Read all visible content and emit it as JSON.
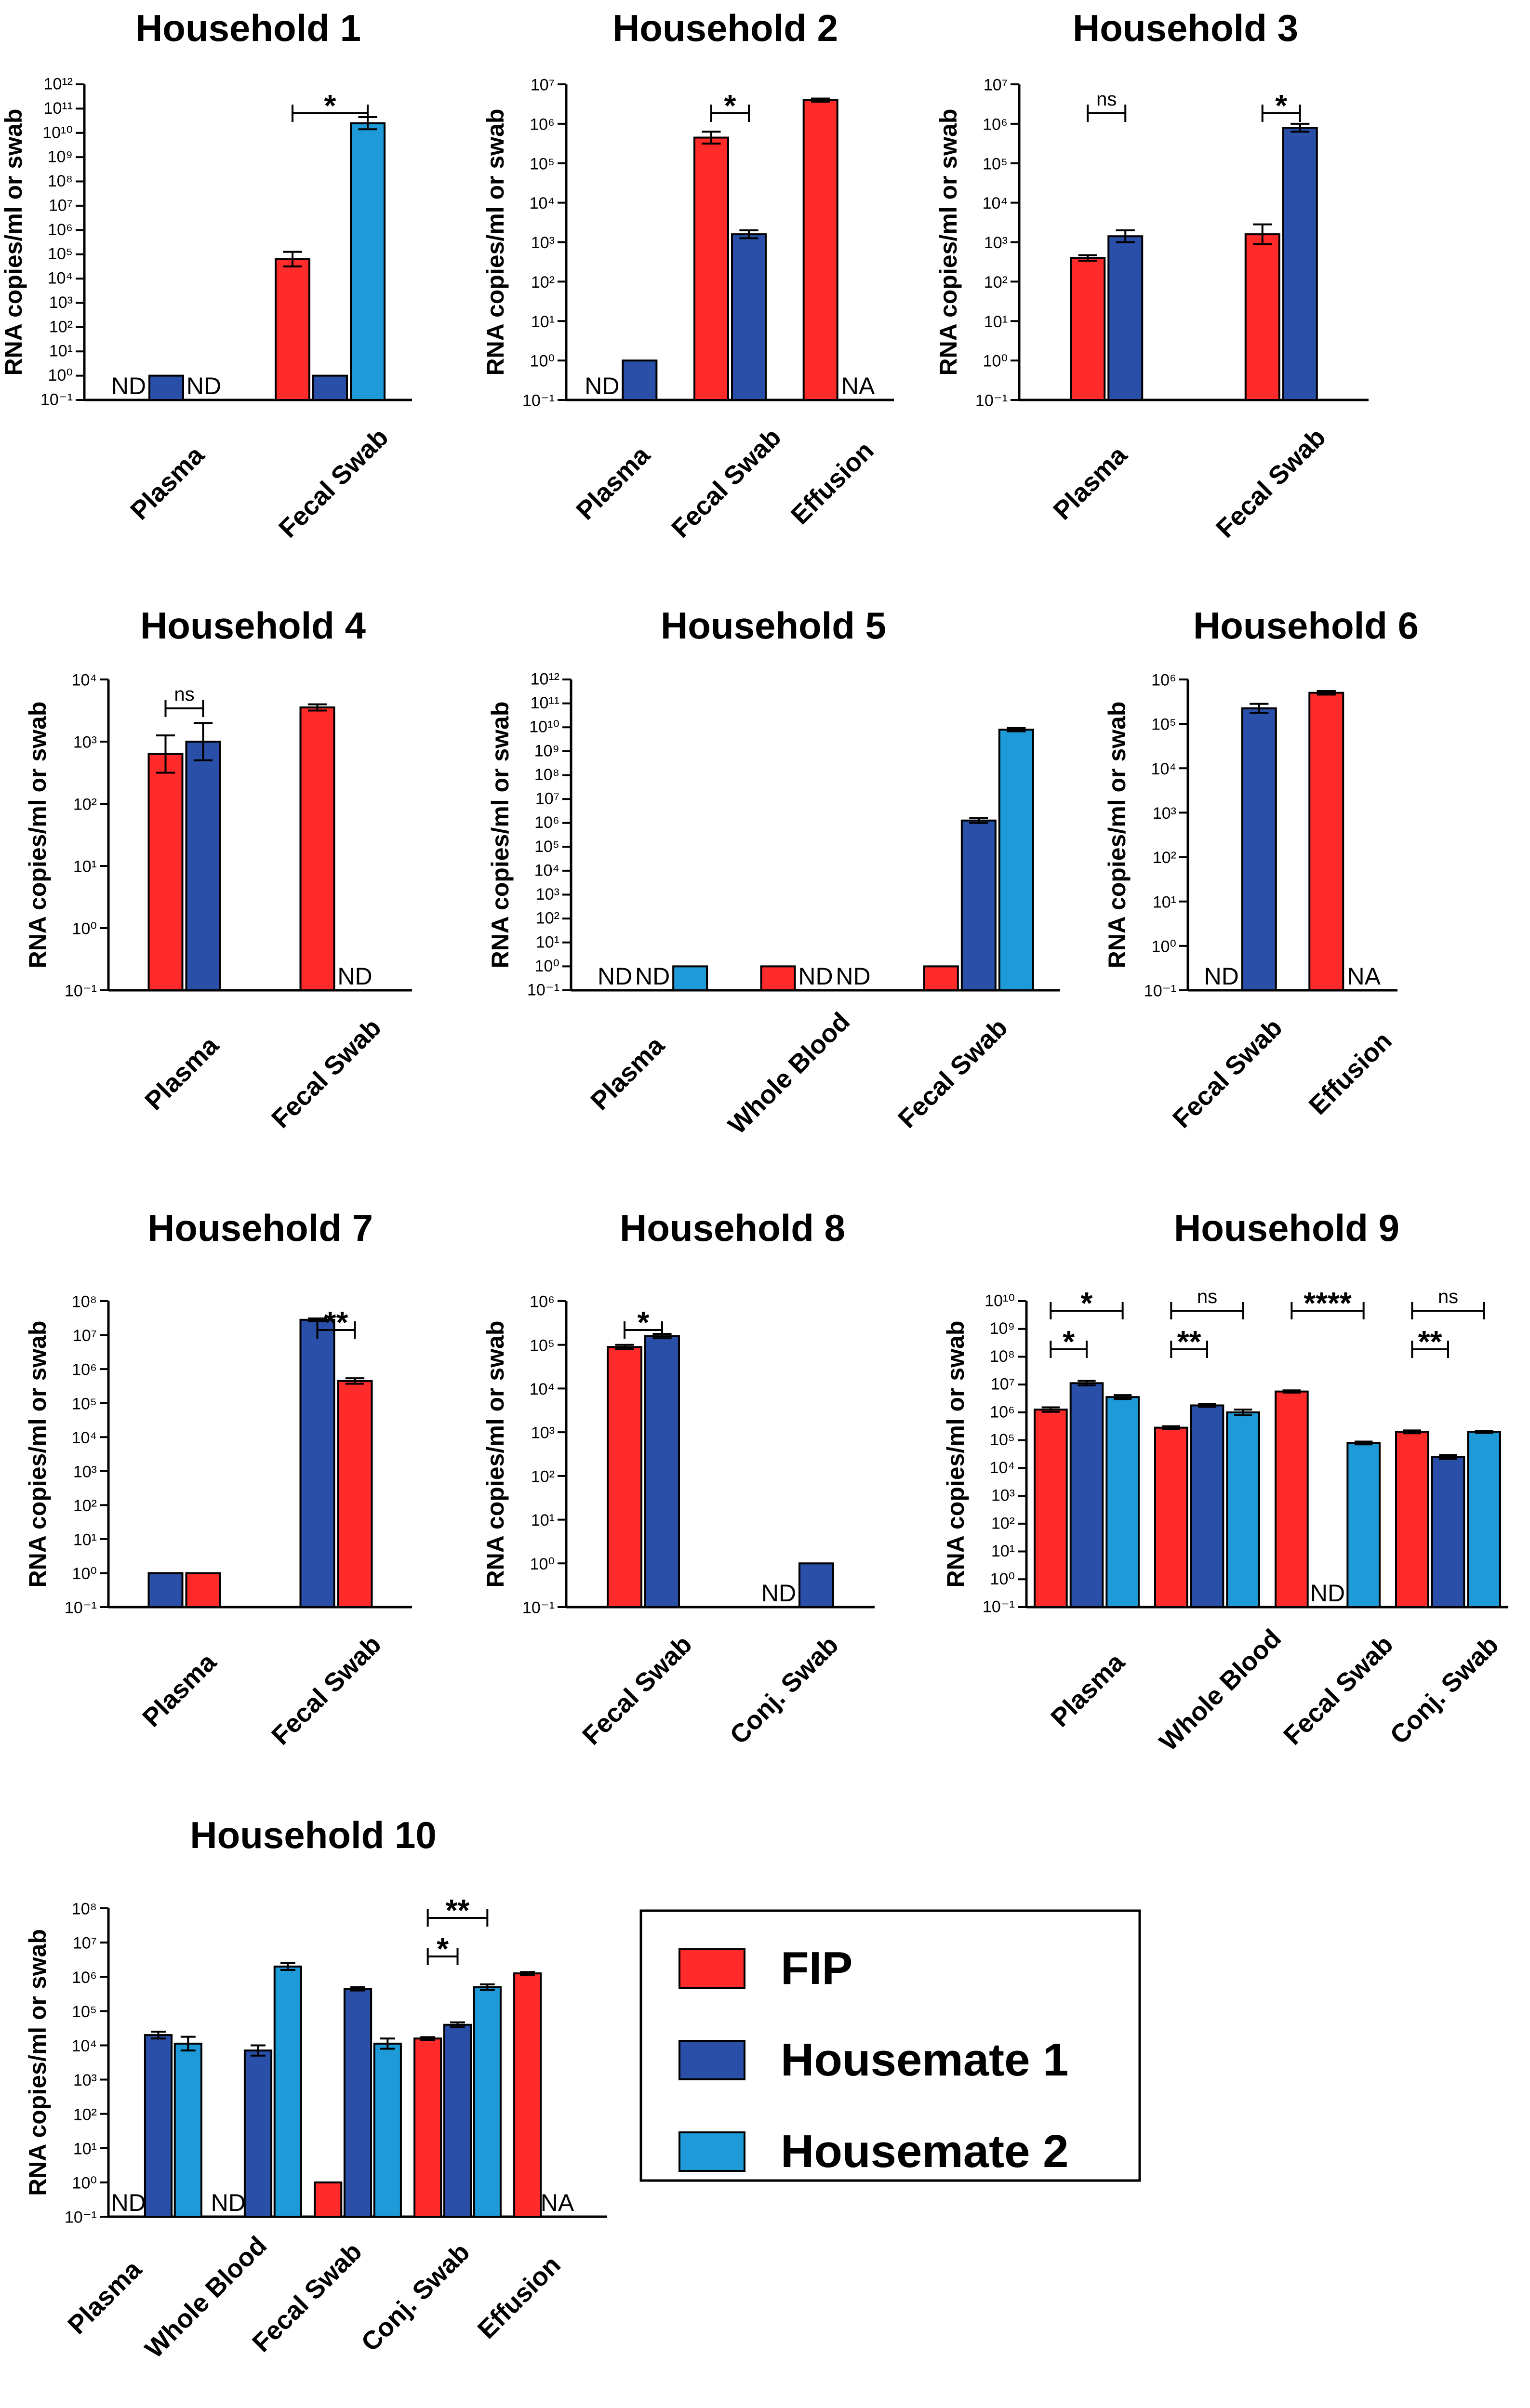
{
  "colors": {
    "fip": "#ff2a2a",
    "housemate1": "#2a4fa8",
    "housemate2": "#1e9ad8"
  },
  "legend": [
    {
      "key": "fip",
      "label": "FIP"
    },
    {
      "key": "housemate1",
      "label": "Housemate 1"
    },
    {
      "key": "housemate2",
      "label": "Housemate 2"
    }
  ],
  "chart_data": [
    {
      "type": "bar",
      "title": "Household 1",
      "ylabel": "RNA copies/ml or swab",
      "yscale": "log10",
      "ylim_exp": [
        -1,
        12
      ],
      "categories": [
        "Plasma",
        "Fecal Swab"
      ],
      "series_order": [
        "fip",
        "housemate1",
        "housemate2"
      ],
      "bars": [
        [
          {
            "label": "ND"
          },
          {
            "value_exp": 0
          },
          {
            "label": "ND"
          }
        ],
        [
          {
            "value_exp": 4.8,
            "err_exp": 0.3
          },
          {
            "value_exp": 0
          },
          {
            "value_exp": 10.4,
            "err_exp": 0.25
          }
        ]
      ],
      "sig": [
        {
          "cat": 1,
          "from": 0,
          "to": 2,
          "level": 0,
          "label": "*"
        }
      ]
    },
    {
      "type": "bar",
      "title": "Household 2",
      "ylabel": "RNA copies/ml or swab",
      "yscale": "log10",
      "ylim_exp": [
        -1,
        7
      ],
      "categories": [
        "Plasma",
        "Fecal Swab",
        "Effusion"
      ],
      "series_order": [
        "fip",
        "housemate1"
      ],
      "bars": [
        [
          {
            "label": "ND"
          },
          {
            "value_exp": 0
          }
        ],
        [
          {
            "value_exp": 5.65,
            "err_exp": 0.15
          },
          {
            "value_exp": 3.2,
            "err_exp": 0.1
          }
        ],
        [
          {
            "value_exp": 6.6,
            "err_exp": 0.04
          },
          {
            "label": "NA"
          }
        ]
      ],
      "sig": [
        {
          "cat": 1,
          "from": 0,
          "to": 1,
          "level": 0,
          "label": "*"
        }
      ]
    },
    {
      "type": "bar",
      "title": "Household 3",
      "ylabel": "RNA copies/ml or swab",
      "yscale": "log10",
      "ylim_exp": [
        -1,
        7
      ],
      "categories": [
        "Plasma",
        "Fecal Swab"
      ],
      "series_order": [
        "fip",
        "housemate1"
      ],
      "bars": [
        [
          {
            "value_exp": 2.6,
            "err_exp": 0.07
          },
          {
            "value_exp": 3.15,
            "err_exp": 0.15
          }
        ],
        [
          {
            "value_exp": 3.2,
            "err_exp": 0.25
          },
          {
            "value_exp": 5.9,
            "err_exp": 0.1
          }
        ]
      ],
      "sig": [
        {
          "cat": 0,
          "from": 0,
          "to": 1,
          "level": 0,
          "label": "ns"
        },
        {
          "cat": 1,
          "from": 0,
          "to": 1,
          "level": 0,
          "label": "*"
        }
      ]
    },
    {
      "type": "bar",
      "title": "Household 4",
      "ylabel": "RNA copies/ml or swab",
      "yscale": "log10",
      "ylim_exp": [
        -1,
        4
      ],
      "categories": [
        "Plasma",
        "Fecal Swab"
      ],
      "series_order": [
        "fip",
        "housemate1"
      ],
      "bars": [
        [
          {
            "value_exp": 2.8,
            "err_exp": 0.3
          },
          {
            "value_exp": 3.0,
            "err_exp": 0.3
          }
        ],
        [
          {
            "value_exp": 3.55,
            "err_exp": 0.05
          },
          {
            "label": "ND"
          }
        ]
      ],
      "sig": [
        {
          "cat": 0,
          "from": 0,
          "to": 1,
          "level": 0,
          "label": "ns"
        }
      ]
    },
    {
      "type": "bar",
      "title": "Household 5",
      "ylabel": "RNA copies/ml or swab",
      "yscale": "log10",
      "ylim_exp": [
        -1,
        12
      ],
      "categories": [
        "Plasma",
        "Whole Blood",
        "Fecal Swab"
      ],
      "series_order": [
        "fip",
        "housemate1",
        "housemate2"
      ],
      "bars": [
        [
          {
            "label": "ND"
          },
          {
            "label": "ND"
          },
          {
            "value_exp": 0
          }
        ],
        [
          {
            "value_exp": 0
          },
          {
            "label": "ND"
          },
          {
            "label": "ND"
          }
        ],
        [
          {
            "value_exp": 0
          },
          {
            "value_exp": 6.1,
            "err_exp": 0.1
          },
          {
            "value_exp": 9.9,
            "err_exp": 0.07
          }
        ]
      ],
      "sig": []
    },
    {
      "type": "bar",
      "title": "Household 6",
      "ylabel": "RNA copies/ml or swab",
      "yscale": "log10",
      "ylim_exp": [
        -1,
        6
      ],
      "categories": [
        "Fecal Swab",
        "Effusion"
      ],
      "series_order": [
        "fip",
        "housemate1"
      ],
      "bars": [
        [
          {
            "label": "ND"
          },
          {
            "value_exp": 5.35,
            "err_exp": 0.1
          }
        ],
        [
          {
            "value_exp": 5.7,
            "err_exp": 0.04
          },
          {
            "label": "NA"
          }
        ]
      ],
      "sig": []
    },
    {
      "type": "bar",
      "title": "Household 7",
      "ylabel": "RNA copies/ml or swab",
      "yscale": "log10",
      "ylim_exp": [
        -1,
        8
      ],
      "categories": [
        "Plasma",
        "Fecal Swab"
      ],
      "series_order": [
        "housemate1",
        "fip"
      ],
      "bars": [
        [
          {
            "value_exp": 0
          },
          {
            "value_exp": 0
          }
        ],
        [
          {
            "value_exp": 7.45,
            "err_exp": 0.04
          },
          {
            "value_exp": 5.65,
            "err_exp": 0.08
          }
        ]
      ],
      "sig": [
        {
          "cat": 1,
          "from": 0,
          "to": 1,
          "level": 0,
          "label": "**"
        }
      ]
    },
    {
      "type": "bar",
      "title": "Household 8",
      "ylabel": "RNA copies/ml or swab",
      "yscale": "log10",
      "ylim_exp": [
        -1,
        6
      ],
      "categories": [
        "Fecal Swab",
        "Conj. Swab"
      ],
      "series_order": [
        "fip",
        "housemate1"
      ],
      "bars": [
        [
          {
            "value_exp": 4.95,
            "err_exp": 0.05
          },
          {
            "value_exp": 5.2,
            "err_exp": 0.05
          }
        ],
        [
          {
            "label": "ND"
          },
          {
            "value_exp": 0
          }
        ]
      ],
      "sig": [
        {
          "cat": 0,
          "from": 0,
          "to": 1,
          "level": 0,
          "label": "*"
        }
      ]
    },
    {
      "type": "bar",
      "title": "Household 9",
      "ylabel": "RNA copies/ml or swab",
      "yscale": "log10",
      "ylim_exp": [
        -1,
        10
      ],
      "categories": [
        "Plasma",
        "Whole Blood",
        "Fecal Swab",
        "Conj. Swab"
      ],
      "series_order": [
        "fip",
        "housemate1",
        "housemate2"
      ],
      "bars": [
        [
          {
            "value_exp": 6.1,
            "err_exp": 0.08
          },
          {
            "value_exp": 7.05,
            "err_exp": 0.08
          },
          {
            "value_exp": 6.55,
            "err_exp": 0.07
          }
        ],
        [
          {
            "value_exp": 5.45,
            "err_exp": 0.05
          },
          {
            "value_exp": 6.25,
            "err_exp": 0.05
          },
          {
            "value_exp": 6.0,
            "err_exp": 0.1
          }
        ],
        [
          {
            "value_exp": 6.75,
            "err_exp": 0.04
          },
          {
            "label": "ND"
          },
          {
            "value_exp": 4.9,
            "err_exp": 0.05
          }
        ],
        [
          {
            "value_exp": 5.3,
            "err_exp": 0.05
          },
          {
            "value_exp": 4.4,
            "err_exp": 0.07
          },
          {
            "value_exp": 5.3,
            "err_exp": 0.04
          }
        ]
      ],
      "sig": [
        {
          "cat": 0,
          "from": 0,
          "to": 1,
          "level": 0,
          "label": "*"
        },
        {
          "cat": 0,
          "from": 0,
          "to": 2,
          "level": 1,
          "label": "*"
        },
        {
          "cat": 1,
          "from": 0,
          "to": 1,
          "level": 0,
          "label": "**"
        },
        {
          "cat": 1,
          "from": 0,
          "to": 2,
          "level": 1,
          "label": "ns"
        },
        {
          "cat": 2,
          "from": 0,
          "to": 2,
          "level": 1,
          "label": "****"
        },
        {
          "cat": 3,
          "from": 0,
          "to": 1,
          "level": 0,
          "label": "**"
        },
        {
          "cat": 3,
          "from": 0,
          "to": 2,
          "level": 1,
          "label": "ns"
        }
      ]
    },
    {
      "type": "bar",
      "title": "Household 10",
      "ylabel": "RNA copies/ml or swab",
      "yscale": "log10",
      "ylim_exp": [
        -1,
        8
      ],
      "categories": [
        "Plasma",
        "Whole Blood",
        "Fecal Swab",
        "Conj. Swab",
        "Effusion"
      ],
      "series_order": [
        "fip",
        "housemate1",
        "housemate2"
      ],
      "bars": [
        [
          {
            "label": "ND"
          },
          {
            "value_exp": 4.3,
            "err_exp": 0.1
          },
          {
            "value_exp": 4.05,
            "err_exp": 0.2
          }
        ],
        [
          {
            "label": "ND"
          },
          {
            "value_exp": 3.85,
            "err_exp": 0.15
          },
          {
            "value_exp": 6.3,
            "err_exp": 0.1
          }
        ],
        [
          {
            "value_exp": 0
          },
          {
            "value_exp": 5.65,
            "err_exp": 0.05
          },
          {
            "value_exp": 4.05,
            "err_exp": 0.15
          }
        ],
        [
          {
            "value_exp": 4.2,
            "err_exp": 0.04
          },
          {
            "value_exp": 4.6,
            "err_exp": 0.07
          },
          {
            "value_exp": 5.7,
            "err_exp": 0.08
          }
        ],
        [
          {
            "value_exp": 6.1,
            "err_exp": 0.04
          },
          {
            "label": "NA"
          },
          null
        ]
      ],
      "sig": [
        {
          "cat": 3,
          "from": 0,
          "to": 1,
          "level": 0,
          "label": "*"
        },
        {
          "cat": 3,
          "from": 0,
          "to": 2,
          "level": 1,
          "label": "**"
        }
      ]
    }
  ]
}
